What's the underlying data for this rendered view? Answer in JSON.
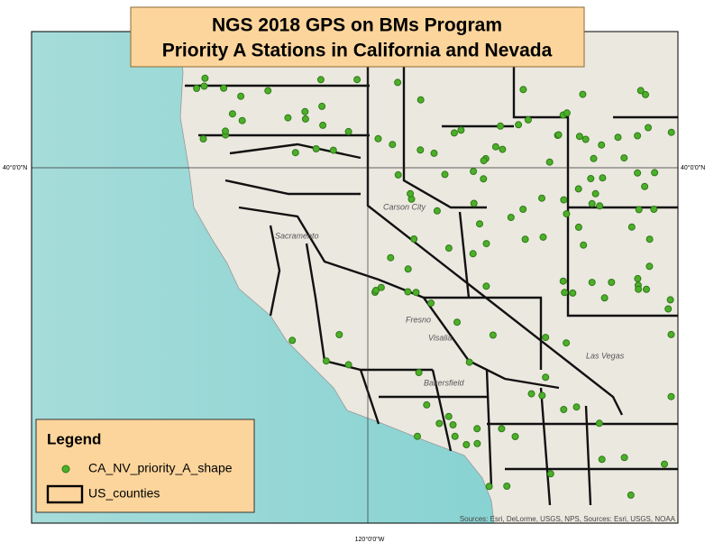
{
  "title": {
    "line1": "NGS 2018 GPS on BMs Program",
    "line2": "Priority A Stations in California and Nevada"
  },
  "legend": {
    "title": "Legend",
    "items": [
      "CA_NV_priority_A_shape",
      "US_counties"
    ]
  },
  "graticule": {
    "lat_left": "40°0'0\"N",
    "lat_right": "40°0'0\"N",
    "lon_bottom": "120°0'0\"W"
  },
  "attribution": "Sources: Esri, DeLorme, USGS, NPS, Sources: Esri, USGS, NOAA",
  "places": [
    "Sacramento",
    "Carson City",
    "Fresno",
    "Visalia",
    "Bakersfield",
    "Las Vegas"
  ]
}
